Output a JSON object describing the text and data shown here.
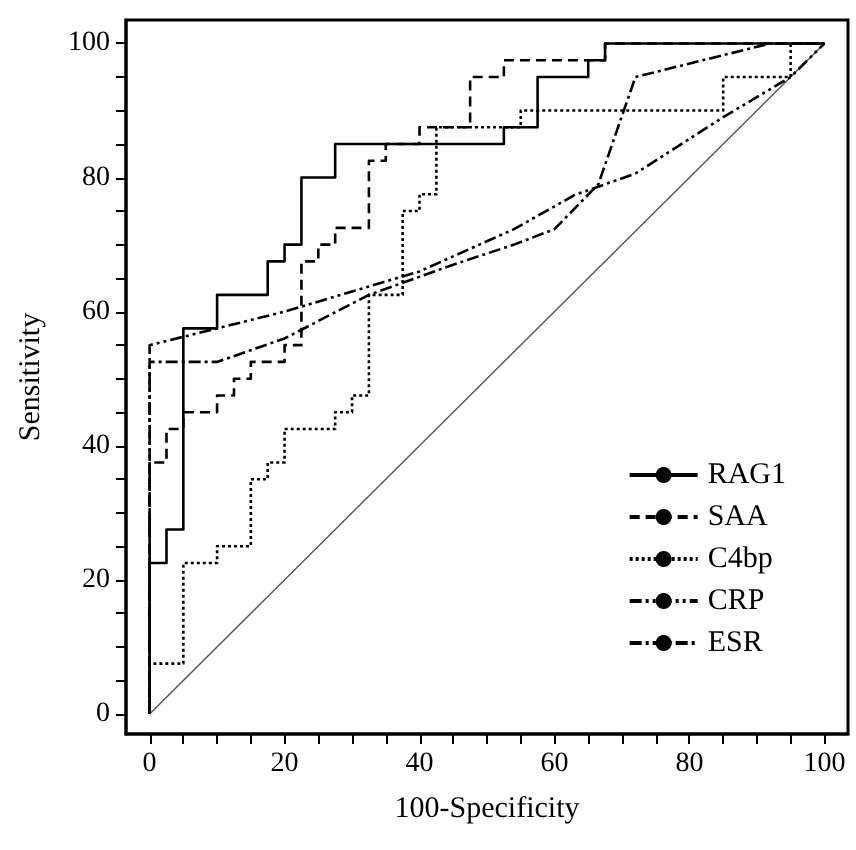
{
  "chart_data": {
    "type": "line",
    "xlabel": "100-Specificity",
    "ylabel": "Sensitivity",
    "xlim": [
      -3.5,
      103.5
    ],
    "ylim": [
      -3,
      103.5
    ],
    "xticks": [
      0,
      {
        "value": 5,
        "label": null
      },
      {
        "value": 10,
        "label": null
      },
      {
        "value": 15,
        "label": null
      },
      20,
      {
        "value": 25,
        "label": null
      },
      {
        "value": 30,
        "label": null
      },
      {
        "value": 35,
        "label": null
      },
      40,
      {
        "value": 45,
        "label": null
      },
      {
        "value": 50,
        "label": null
      },
      {
        "value": 55,
        "label": null
      },
      60,
      {
        "value": 65,
        "label": null
      },
      {
        "value": 70,
        "label": null
      },
      {
        "value": 75,
        "label": null
      },
      80,
      {
        "value": 85,
        "label": null
      },
      {
        "value": 90,
        "label": null
      },
      {
        "value": 95,
        "label": null
      },
      100
    ],
    "yticks": [
      0,
      {
        "value": 5,
        "label": null
      },
      {
        "value": 10,
        "label": null
      },
      {
        "value": 15,
        "label": null
      },
      20,
      {
        "value": 25,
        "label": null
      },
      {
        "value": 30,
        "label": null
      },
      {
        "value": 35,
        "label": null
      },
      40,
      {
        "value": 45,
        "label": null
      },
      {
        "value": 50,
        "label": null
      },
      {
        "value": 55,
        "label": null
      },
      60,
      {
        "value": 65,
        "label": null
      },
      {
        "value": 70,
        "label": null
      },
      {
        "value": 75,
        "label": null
      },
      80,
      {
        "value": 85,
        "label": null
      },
      {
        "value": 90,
        "label": null
      },
      {
        "value": 95,
        "label": null
      },
      100
    ],
    "grid": false,
    "legend": "right",
    "marker": "none",
    "series": [
      {
        "name": "RAG1",
        "color": "#000000",
        "line_style": "solid",
        "x": [
          0,
          0,
          2.5,
          2.5,
          5,
          5,
          10,
          10,
          17.5,
          17.5,
          20,
          20,
          22.5,
          22.5,
          27.5,
          27.5,
          52.5,
          52.5,
          57.5,
          57.5,
          65,
          65,
          67.5,
          67.5,
          100
        ],
        "values": [
          0,
          22.5,
          22.5,
          27.5,
          27.5,
          57.5,
          57.5,
          62.5,
          62.5,
          67.5,
          67.5,
          70,
          70,
          80,
          80,
          85,
          85,
          87.5,
          87.5,
          95,
          95,
          97.5,
          97.5,
          100,
          100
        ]
      },
      {
        "name": "SAA",
        "color": "#000000",
        "line_style": "dashed",
        "x": [
          0,
          0,
          2.5,
          2.5,
          5,
          5,
          10,
          10,
          12.5,
          12.5,
          15,
          15,
          20,
          20,
          22.5,
          22.5,
          25,
          25,
          27.5,
          27.5,
          32.5,
          32.5,
          35,
          35,
          40,
          40,
          47.5,
          47.5,
          52.5,
          52.5,
          67.5,
          67.5,
          100
        ],
        "values": [
          0,
          37.5,
          37.5,
          42.5,
          42.5,
          45,
          45,
          47.5,
          47.5,
          50,
          50,
          52.5,
          52.5,
          55,
          55,
          67.5,
          67.5,
          70,
          70,
          72.5,
          72.5,
          82.5,
          82.5,
          85,
          85,
          87.5,
          87.5,
          95,
          95,
          97.5,
          97.5,
          100,
          100
        ]
      },
      {
        "name": "C4bp",
        "color": "#000000",
        "line_style": "dotted",
        "x": [
          0,
          0,
          5,
          5,
          10,
          10,
          15,
          15,
          17.5,
          17.5,
          20,
          20,
          27.5,
          27.5,
          30,
          30,
          32.5,
          32.5,
          37.5,
          37.5,
          40,
          40,
          42.5,
          42.5,
          55,
          55,
          85,
          85,
          95,
          95,
          100
        ],
        "values": [
          0,
          7.5,
          7.5,
          22.5,
          22.5,
          25,
          25,
          35,
          35,
          37.5,
          37.5,
          42.5,
          42.5,
          45,
          45,
          47.5,
          47.5,
          62.5,
          62.5,
          75,
          75,
          77.5,
          77.5,
          87.5,
          87.5,
          90,
          90,
          95,
          95,
          100,
          100
        ]
      },
      {
        "name": "CRP",
        "color": "#000000",
        "line_style": "dashdotdot",
        "x": [
          0,
          0,
          20,
          40,
          54,
          63,
          72,
          85,
          95,
          100
        ],
        "values": [
          0,
          55,
          60,
          66,
          72.3,
          77.4,
          80.6,
          89,
          95,
          100
        ]
      },
      {
        "name": "ESR",
        "color": "#000000",
        "line_style": "dashdot",
        "x": [
          0,
          0,
          10,
          20,
          32.5,
          45,
          54,
          60,
          66.5,
          72,
          92,
          100
        ],
        "values": [
          0,
          52.5,
          52.5,
          56,
          62.5,
          67,
          70,
          72.3,
          79,
          95,
          100,
          100
        ]
      },
      {
        "color": "#555555",
        "line_style": "solid",
        "x": [
          0,
          100
        ],
        "values": [
          0,
          100
        ]
      }
    ]
  }
}
